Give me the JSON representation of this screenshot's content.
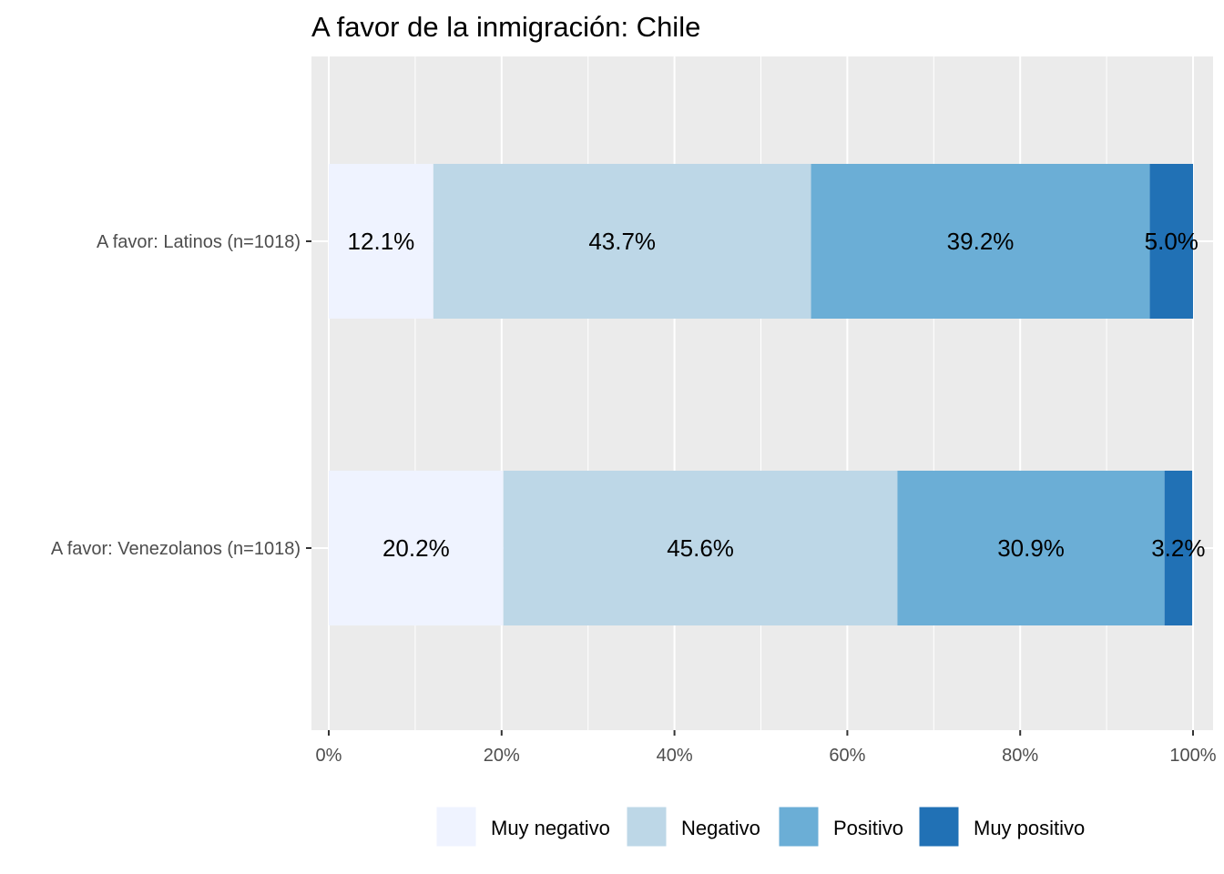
{
  "chart_data": {
    "type": "bar",
    "orientation": "horizontal",
    "stacked": true,
    "title": "A favor de la inmigración: Chile",
    "xlabel": "",
    "ylabel": "",
    "xlim": [
      0,
      100
    ],
    "x_ticks": [
      "0%",
      "20%",
      "40%",
      "60%",
      "80%",
      "100%"
    ],
    "grid": true,
    "legend_position": "bottom",
    "categories": [
      "A favor: Latinos (n=1018)",
      "A favor: Venezolanos (n=1018)"
    ],
    "series": [
      {
        "name": "Muy negativo",
        "color": "#eff3ff",
        "values": [
          12.1,
          20.2
        ],
        "labels": [
          "12.1%",
          "20.2%"
        ]
      },
      {
        "name": "Negativo",
        "color": "#bdd7e7",
        "values": [
          43.7,
          45.6
        ],
        "labels": [
          "43.7%",
          "45.6%"
        ]
      },
      {
        "name": "Positivo",
        "color": "#6baed6",
        "values": [
          39.2,
          30.9
        ],
        "labels": [
          "39.2%",
          "30.9%"
        ]
      },
      {
        "name": "Muy positivo",
        "color": "#2171b5",
        "values": [
          5.0,
          3.2
        ],
        "labels": [
          "5.0%",
          "3.2%"
        ]
      }
    ],
    "panel_background": "#ebebeb",
    "gridline_color": "#ffffff"
  }
}
